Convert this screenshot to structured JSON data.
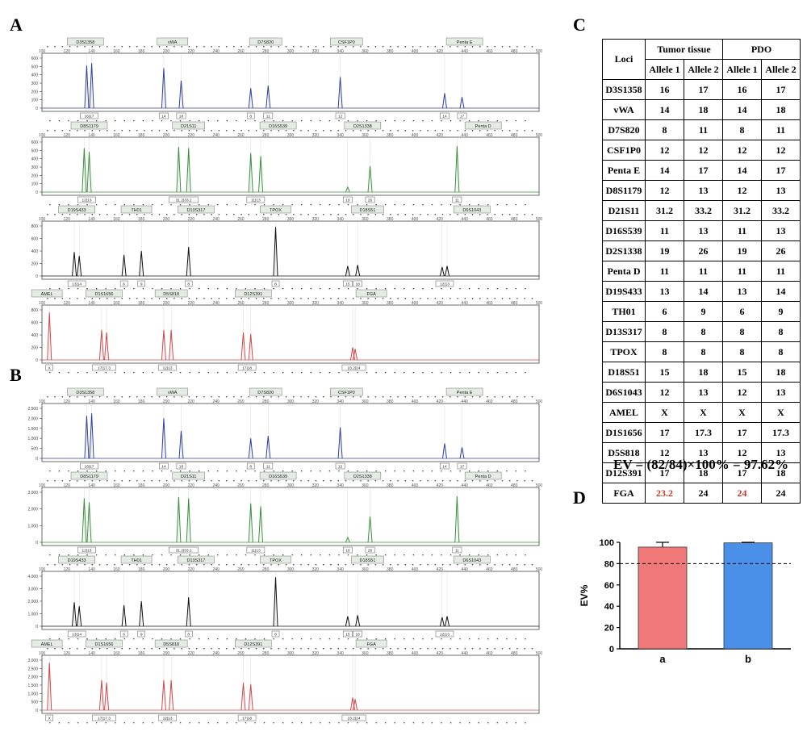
{
  "panels": {
    "a": "A",
    "b": "B",
    "c": "C",
    "d": "D"
  },
  "electropherograms": {
    "x_ticks": [
      100,
      120,
      140,
      160,
      180,
      200,
      220,
      240,
      260,
      280,
      300,
      320,
      340,
      360,
      380,
      400,
      420,
      440,
      460,
      480,
      500
    ],
    "x_range": [
      100,
      500
    ],
    "channels": [
      {
        "color": "#2f3fa3",
        "markers": [
          [
            "D3S1358",
            135
          ],
          [
            "vWA",
            205
          ],
          [
            "D7S820",
            280
          ],
          [
            "CSF1P0",
            345
          ],
          [
            "Penta E",
            440
          ]
        ],
        "peaks": [
          [
            136,
            0.85
          ],
          [
            140,
            0.9
          ],
          [
            198,
            0.8
          ],
          [
            212,
            0.55
          ],
          [
            268,
            0.4
          ],
          [
            282,
            0.45
          ],
          [
            340,
            0.62
          ],
          [
            424,
            0.3
          ],
          [
            438,
            0.22
          ]
        ],
        "alleles": [
          [
            "16|17",
            138
          ],
          [
            "14",
            198
          ],
          [
            "18",
            212
          ],
          [
            "8",
            268
          ],
          [
            "11",
            282
          ],
          [
            "12",
            340
          ],
          [
            "14",
            424
          ],
          [
            "17",
            438
          ]
        ]
      },
      {
        "color": "#3a8f3a",
        "markers": [
          [
            "D8S1179",
            138
          ],
          [
            "D21S11",
            218
          ],
          [
            "D16S539",
            290
          ],
          [
            "D2S1338",
            358
          ],
          [
            "Penta D",
            455
          ]
        ],
        "peaks": [
          [
            134,
            0.88
          ],
          [
            138,
            0.8
          ],
          [
            210,
            0.9
          ],
          [
            218,
            0.88
          ],
          [
            268,
            0.78
          ],
          [
            276,
            0.72
          ],
          [
            346,
            0.1
          ],
          [
            364,
            0.52
          ],
          [
            434,
            0.92
          ]
        ],
        "alleles": [
          [
            "12|13",
            136
          ],
          [
            "31.2|33.2",
            214
          ],
          [
            "11|13",
            272
          ],
          [
            "19",
            346
          ],
          [
            "26",
            364
          ],
          [
            "11",
            434
          ]
        ]
      },
      {
        "color": "#111111",
        "markers": [
          [
            "D19S433",
            128
          ],
          [
            "TH01",
            176
          ],
          [
            "D13S317",
            224
          ],
          [
            "TPOX",
            288
          ],
          [
            "D18S51",
            362
          ],
          [
            "D6S1043",
            446
          ]
        ],
        "peaks": [
          [
            126,
            0.48
          ],
          [
            130,
            0.4
          ],
          [
            166,
            0.42
          ],
          [
            180,
            0.5
          ],
          [
            218,
            0.58
          ],
          [
            288,
            0.98
          ],
          [
            346,
            0.2
          ],
          [
            354,
            0.22
          ],
          [
            422,
            0.18
          ],
          [
            426,
            0.2
          ]
        ],
        "alleles": [
          [
            "13|14",
            128
          ],
          [
            "6",
            166
          ],
          [
            "9",
            180
          ],
          [
            "8",
            218
          ],
          [
            "8",
            288
          ],
          [
            "15",
            346
          ],
          [
            "18",
            354
          ],
          [
            "12|13",
            424
          ]
        ]
      },
      {
        "color": "#d04848",
        "markers": [
          [
            "AMEL",
            104
          ],
          [
            "D1S1656",
            150
          ],
          [
            "D5S818",
            204
          ],
          [
            "D12S391",
            270
          ],
          [
            "FGA",
            365
          ]
        ],
        "peaks": [
          [
            106,
            0.95
          ],
          [
            148,
            0.6
          ],
          [
            152,
            0.55
          ],
          [
            198,
            0.6
          ],
          [
            204,
            0.6
          ],
          [
            262,
            0.55
          ],
          [
            268,
            0.52
          ],
          [
            350,
            0.25
          ],
          [
            352,
            0.22
          ]
        ],
        "alleles": [
          [
            "X",
            106
          ],
          [
            "17|17.3",
            150
          ],
          [
            "12|13",
            201
          ],
          [
            "17|18",
            265
          ],
          [
            "23.2|24",
            351
          ]
        ]
      }
    ],
    "groups": [
      {
        "panel": "a",
        "y_ticks": [
          [
            "0",
            "100",
            "200",
            "300",
            "400",
            "500",
            "600"
          ],
          [
            "0",
            "100",
            "200",
            "300",
            "400",
            "500",
            "600"
          ],
          [
            "0",
            "200",
            "400",
            "600",
            "800"
          ],
          [
            "0",
            "200",
            "400",
            "600",
            "800"
          ]
        ]
      },
      {
        "panel": "b",
        "y_ticks": [
          [
            "0",
            "500",
            "1,000",
            "1,500",
            "2,000",
            "2,500"
          ],
          [
            "0",
            "1,000",
            "2,000",
            "3,000"
          ],
          [
            "0",
            "1,000",
            "2,000",
            "3,000",
            "4,000"
          ],
          [
            "0",
            "500",
            "1,000",
            "1,500",
            "2,000",
            "2,500",
            "3,000"
          ]
        ]
      }
    ]
  },
  "str_table": {
    "loci_header": "Loci",
    "group_headers": [
      "Tumor tissue",
      "PDO"
    ],
    "allele_headers": [
      "Allele 1",
      "Allele 2",
      "Allele 1",
      "Allele 2"
    ],
    "rows": [
      {
        "locus": "D3S1358",
        "v": [
          "16",
          "17",
          "16",
          "17"
        ]
      },
      {
        "locus": "vWA",
        "v": [
          "14",
          "18",
          "14",
          "18"
        ]
      },
      {
        "locus": "D7S820",
        "v": [
          "8",
          "11",
          "8",
          "11"
        ]
      },
      {
        "locus": "CSF1P0",
        "v": [
          "12",
          "12",
          "12",
          "12"
        ]
      },
      {
        "locus": "Penta E",
        "v": [
          "14",
          "17",
          "14",
          "17"
        ]
      },
      {
        "locus": "D8S1179",
        "v": [
          "12",
          "13",
          "12",
          "13"
        ]
      },
      {
        "locus": "D21S11",
        "v": [
          "31.2",
          "33.2",
          "31.2",
          "33.2"
        ]
      },
      {
        "locus": "D16S539",
        "v": [
          "11",
          "13",
          "11",
          "13"
        ]
      },
      {
        "locus": "D2S1338",
        "v": [
          "19",
          "26",
          "19",
          "26"
        ]
      },
      {
        "locus": "Penta D",
        "v": [
          "11",
          "11",
          "11",
          "11"
        ]
      },
      {
        "locus": "D19S433",
        "v": [
          "13",
          "14",
          "13",
          "14"
        ]
      },
      {
        "locus": "TH01",
        "v": [
          "6",
          "9",
          "6",
          "9"
        ]
      },
      {
        "locus": "D13S317",
        "v": [
          "8",
          "8",
          "8",
          "8"
        ]
      },
      {
        "locus": "TPOX",
        "v": [
          "8",
          "8",
          "8",
          "8"
        ]
      },
      {
        "locus": "D18S51",
        "v": [
          "15",
          "18",
          "15",
          "18"
        ]
      },
      {
        "locus": "D6S1043",
        "v": [
          "12",
          "13",
          "12",
          "13"
        ]
      },
      {
        "locus": "AMEL",
        "v": [
          "X",
          "X",
          "X",
          "X"
        ]
      },
      {
        "locus": "D1S1656",
        "v": [
          "17",
          "17.3",
          "17",
          "17.3"
        ]
      },
      {
        "locus": "D5S818",
        "v": [
          "12",
          "13",
          "12",
          "13"
        ]
      },
      {
        "locus": "D12S391",
        "v": [
          "17",
          "18",
          "17",
          "18"
        ]
      },
      {
        "locus": "FGA",
        "v": [
          "23.2",
          "24",
          "24",
          "24"
        ],
        "mismatch": [
          0,
          2
        ]
      }
    ],
    "mismatch_color": "#c0392b"
  },
  "ev_formula": "EV = (82/84)×100% = 97.62%",
  "chart_data": {
    "type": "bar",
    "categories": [
      "a",
      "b"
    ],
    "values": [
      95.5,
      99.5
    ],
    "errors": [
      4.5,
      0.5
    ],
    "colors": [
      "#f07878",
      "#4a90e8"
    ],
    "ylabel": "EV%",
    "ylim": [
      0,
      100
    ],
    "y_ticks": [
      0,
      20,
      40,
      60,
      80,
      100
    ],
    "reference_line": 80
  }
}
